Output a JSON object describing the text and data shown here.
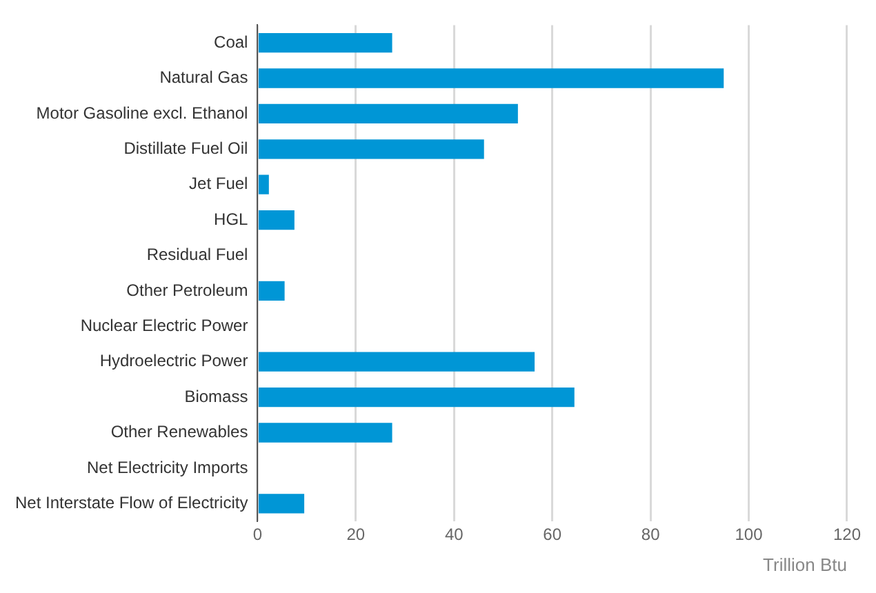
{
  "chart_data": {
    "type": "bar",
    "orientation": "horizontal",
    "xlabel": "Trillion Btu",
    "categories": [
      "Coal",
      "Natural Gas",
      "Motor Gasoline excl. Ethanol",
      "Distillate Fuel Oil",
      "Jet Fuel",
      "HGL",
      "Residual Fuel",
      "Other Petroleum",
      "Nuclear Electric Power",
      "Hydroelectric Power",
      "Biomass",
      "Other Renewables",
      "Net Electricity Imports",
      "Net Interstate Flow of Electricity"
    ],
    "values": [
      27.4,
      94.9,
      53.0,
      46.1,
      2.3,
      7.5,
      0,
      5.5,
      0,
      56.4,
      64.5,
      27.4,
      0,
      9.5
    ],
    "color": "#0096d6",
    "xlim": [
      0,
      120
    ],
    "xticks": [
      0,
      20,
      40,
      60,
      80,
      100,
      120
    ],
    "grid": "x",
    "legend": false
  }
}
